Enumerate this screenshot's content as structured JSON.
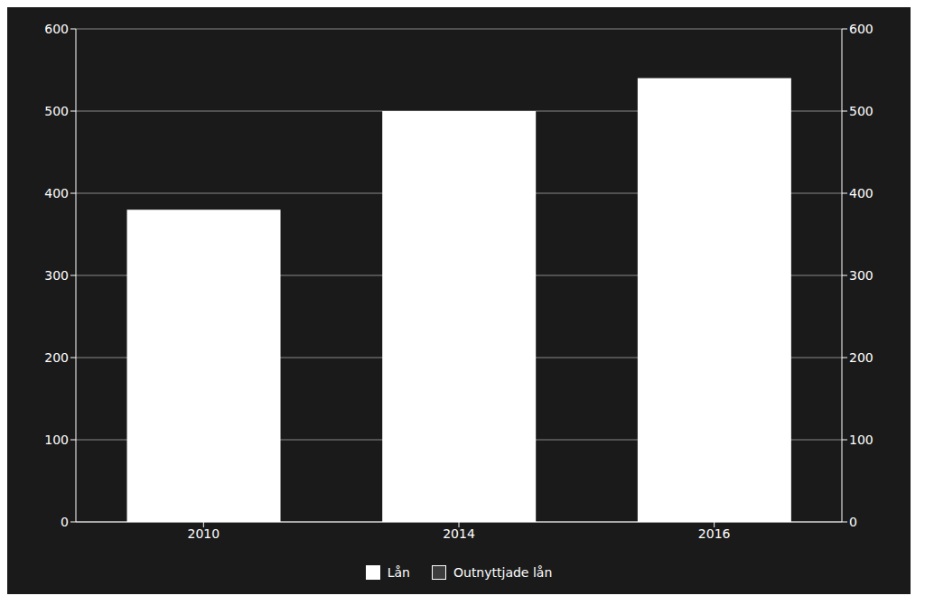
{
  "chart_data": {
    "type": "bar",
    "categories": [
      "2010",
      "2014",
      "2016"
    ],
    "series": [
      {
        "name": "Lån",
        "color": "#ffffff",
        "values": [
          380,
          500,
          540
        ]
      },
      {
        "name": "Outnyttjade lån",
        "color": "#3d3d3d",
        "values": [
          null,
          null,
          null
        ]
      }
    ],
    "ylim": [
      0,
      600
    ],
    "yticks": [
      0,
      100,
      200,
      300,
      400,
      500,
      600
    ],
    "y2lim": [
      0,
      600
    ],
    "y2ticks": [
      0,
      100,
      200,
      300,
      400,
      500,
      600
    ],
    "grid": true,
    "legend": "bottom"
  }
}
